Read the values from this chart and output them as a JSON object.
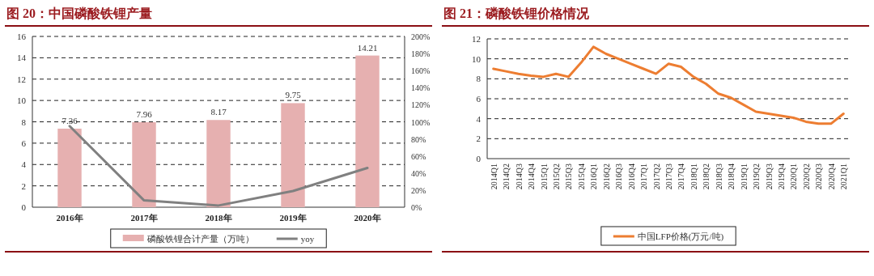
{
  "chart_data": [
    {
      "type": "bar",
      "title": "图 20：中国磷酸铁锂产量",
      "categories": [
        "2016年",
        "2017年",
        "2018年",
        "2019年",
        "2020年"
      ],
      "series": [
        {
          "name": "磷酸铁锂合计产量（万吨）",
          "color": "#e6b0b0",
          "values": [
            7.36,
            7.96,
            8.17,
            9.75,
            14.21
          ],
          "value_labels": [
            "7.36",
            "7.96",
            "8.17",
            "9.75",
            "14.21"
          ]
        },
        {
          "name": "yoy",
          "type": "line",
          "axis": "y2",
          "color": "#808080",
          "values": [
            95,
            8,
            2,
            19,
            46
          ]
        }
      ],
      "ylim": [
        0,
        16
      ],
      "yticks": [
        0,
        2,
        4,
        6,
        8,
        10,
        12,
        14,
        16
      ],
      "y2lim": [
        0,
        200
      ],
      "y2ticks": [
        {
          "value": 0,
          "label": "0%"
        },
        {
          "value": 20,
          "label": "20%"
        },
        {
          "value": 40,
          "label": "40%"
        },
        {
          "value": 60,
          "label": "60%"
        },
        {
          "value": 80,
          "label": "80%"
        },
        {
          "value": 100,
          "label": "100%"
        },
        {
          "value": 120,
          "label": "120%"
        },
        {
          "value": 140,
          "label": "140%"
        },
        {
          "value": 160,
          "label": "160%"
        },
        {
          "value": 180,
          "label": "180%"
        },
        {
          "value": 200,
          "label": "200%"
        }
      ],
      "grid": "y",
      "legend": "bottom"
    },
    {
      "type": "line",
      "title": "图 21：磷酸铁锂价格情况",
      "categories": [
        "2014Q1",
        "2014Q2",
        "2014Q3",
        "2014Q4",
        "2015Q1",
        "2015Q2",
        "2015Q3",
        "2015Q4",
        "2016Q1",
        "2016Q2",
        "2016Q3",
        "2016Q4",
        "2017Q1",
        "2017Q2",
        "2017Q3",
        "2017Q4",
        "2018Q1",
        "2018Q2",
        "2018Q3",
        "2018Q4",
        "2019Q1",
        "2019Q2",
        "2019Q3",
        "2019Q4",
        "2020Q1",
        "2020Q2",
        "2020Q3",
        "2020Q4",
        "2021Q1"
      ],
      "series": [
        {
          "name": "中国LFP价格(万元/吨)",
          "color": "#ed7d31",
          "values": [
            9.0,
            8.75,
            8.5,
            8.3,
            8.2,
            8.5,
            8.2,
            9.6,
            11.2,
            10.5,
            10.0,
            9.5,
            9.0,
            8.5,
            9.5,
            9.2,
            8.2,
            7.5,
            6.5,
            6.1,
            5.4,
            4.7,
            4.5,
            4.3,
            4.1,
            3.7,
            3.5,
            3.5,
            4.5
          ]
        }
      ],
      "ylim": [
        0,
        12
      ],
      "yticks": [
        0,
        2,
        4,
        6,
        8,
        10,
        12
      ],
      "grid": "y",
      "legend": "bottom"
    }
  ]
}
